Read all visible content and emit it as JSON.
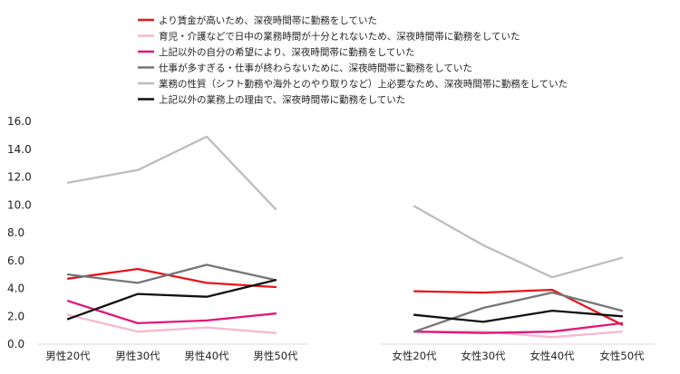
{
  "chart_data": {
    "type": "line",
    "title": "",
    "xlabel": "",
    "ylabel": "",
    "ylim": [
      0,
      16
    ],
    "yticks": [
      "0.0",
      "2.0",
      "4.0",
      "6.0",
      "8.0",
      "10.0",
      "12.0",
      "14.0",
      "16.0"
    ],
    "grid": false,
    "legend_position": "top",
    "groups": [
      {
        "categories": [
          "男性20代",
          "男性30代",
          "男性40代",
          "男性50代"
        ]
      },
      {
        "categories": [
          "女性20代",
          "女性30代",
          "女性40代",
          "女性50代"
        ]
      }
    ],
    "series": [
      {
        "name": "より賃金が高いため、深夜時間帯に勤務をしていた",
        "color": "#e8141b",
        "values": [
          [
            4.7,
            5.4,
            4.4,
            4.1
          ],
          [
            3.8,
            3.7,
            3.9,
            1.4
          ]
        ]
      },
      {
        "name": "育児・介護などで日中の業務時間が十分とれないため、深夜時間帯に勤務をしていた",
        "color": "#f7b8d2",
        "values": [
          [
            2.1,
            0.9,
            1.2,
            0.8
          ],
          [
            0.9,
            0.9,
            0.5,
            0.9
          ]
        ]
      },
      {
        "name": "上記以外の自分の希望により、深夜時間帯に勤務をしていた",
        "color": "#e0177b",
        "values": [
          [
            3.1,
            1.5,
            1.7,
            2.2
          ],
          [
            0.9,
            0.8,
            0.9,
            1.5
          ]
        ]
      },
      {
        "name": "仕事が多すぎる・仕事が終わらないために、深夜時間帯に勤務をしていた",
        "color": "#767676",
        "values": [
          [
            5.0,
            4.4,
            5.7,
            4.6
          ],
          [
            0.9,
            2.6,
            3.7,
            2.4
          ]
        ]
      },
      {
        "name": "業務の性質（シフト勤務や海外とのやり取りなど）上必要なため、深夜時間帯に勤務をしていた",
        "color": "#bdbdbd",
        "values": [
          [
            11.6,
            12.5,
            14.9,
            9.7
          ],
          [
            9.9,
            7.1,
            4.8,
            6.2
          ]
        ]
      },
      {
        "name": "上記以外の業務上の理由で、深夜時間帯に勤務をしていた",
        "color": "#111111",
        "values": [
          [
            1.8,
            3.6,
            3.4,
            4.6
          ],
          [
            2.1,
            1.6,
            2.4,
            2.0
          ]
        ]
      }
    ]
  }
}
